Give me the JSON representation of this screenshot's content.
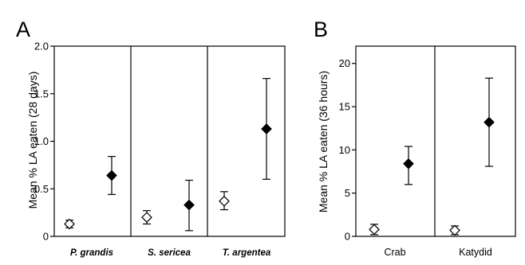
{
  "chart_data": [
    {
      "panel": "A",
      "type": "scatter",
      "ylabel": "Mean % LA eaten (28 days)",
      "ylim": [
        0,
        2.0
      ],
      "yticks": [
        "2.0",
        "1.5",
        "1.0",
        "0.5",
        "0"
      ],
      "ytick_values": [
        2.0,
        1.5,
        1.0,
        0.5,
        0
      ],
      "categories": [
        "P. grandis",
        "S. sericea",
        "T. argentea"
      ],
      "groups": [
        {
          "category": "P. grandis",
          "points": [
            {
              "marker": "open",
              "y": 0.13,
              "low": 0.09,
              "high": 0.17
            },
            {
              "marker": "filled",
              "y": 0.64,
              "low": 0.44,
              "high": 0.84
            }
          ]
        },
        {
          "category": "S. sericea",
          "points": [
            {
              "marker": "open",
              "y": 0.2,
              "low": 0.13,
              "high": 0.27
            },
            {
              "marker": "filled",
              "y": 0.33,
              "low": 0.06,
              "high": 0.59
            }
          ]
        },
        {
          "category": "T. argentea",
          "points": [
            {
              "marker": "open",
              "y": 0.37,
              "low": 0.28,
              "high": 0.47
            },
            {
              "marker": "filled",
              "y": 1.13,
              "low": 0.6,
              "high": 1.66
            }
          ]
        }
      ]
    },
    {
      "panel": "B",
      "type": "scatter",
      "ylabel": "Mean % LA eaten (36 hours)",
      "ylim": [
        0,
        22
      ],
      "yticks": [
        "20",
        "15",
        "10",
        "5",
        "0"
      ],
      "ytick_values": [
        20,
        15,
        10,
        5,
        0
      ],
      "categories": [
        "Crab",
        "Katydid"
      ],
      "groups": [
        {
          "category": "Crab",
          "points": [
            {
              "marker": "open",
              "y": 0.8,
              "low": 0.2,
              "high": 1.4
            },
            {
              "marker": "filled",
              "y": 8.4,
              "low": 6.0,
              "high": 10.4
            }
          ]
        },
        {
          "category": "Katydid",
          "points": [
            {
              "marker": "open",
              "y": 0.7,
              "low": 0.2,
              "high": 1.2
            },
            {
              "marker": "filled",
              "y": 13.2,
              "low": 8.1,
              "high": 18.3
            }
          ]
        }
      ]
    }
  ]
}
